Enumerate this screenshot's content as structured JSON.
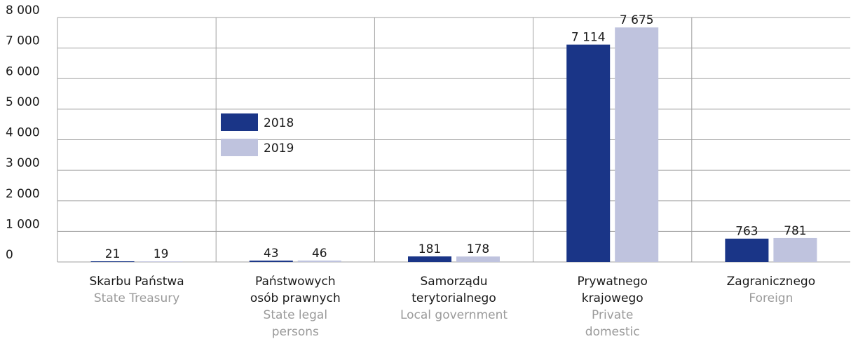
{
  "chart_data": {
    "type": "bar",
    "categories": [
      [
        "Skarbu Państwa"
      ],
      [
        "Państwowych",
        "osób prawnych"
      ],
      [
        "Samorządu",
        "terytorialnego"
      ],
      [
        "Prywatnego",
        "krajowego"
      ],
      [
        "Zagranicznego"
      ]
    ],
    "categories_en": [
      [
        "State Treasury"
      ],
      [
        "State legal",
        "persons"
      ],
      [
        "Local government"
      ],
      [
        "Private",
        "domestic"
      ],
      [
        "Foreign"
      ]
    ],
    "series": [
      {
        "name": "2018",
        "color": "#1a3587",
        "values": [
          21,
          43,
          181,
          7114,
          763
        ],
        "value_labels": [
          "21",
          "43",
          "181",
          "7 114",
          "763"
        ]
      },
      {
        "name": "2019",
        "color": "#bfc3de",
        "values": [
          19,
          46,
          178,
          7675,
          781
        ],
        "value_labels": [
          "19",
          "46",
          "178",
          "7 675",
          "781"
        ]
      }
    ],
    "ylim": [
      0,
      8000
    ],
    "yticks": [
      0,
      {
        "value": 1000,
        "label": "1 000"
      },
      {
        "value": 2000,
        "label": "2 000"
      },
      {
        "value": 3000,
        "label": "3 000"
      },
      {
        "value": 4000,
        "label": "4 000"
      },
      {
        "value": 5000,
        "label": "5 000"
      },
      {
        "value": 6000,
        "label": "6 000"
      },
      {
        "value": 7000,
        "label": "7 000"
      },
      {
        "value": 8000,
        "label": "8 000"
      }
    ],
    "grid": true
  }
}
